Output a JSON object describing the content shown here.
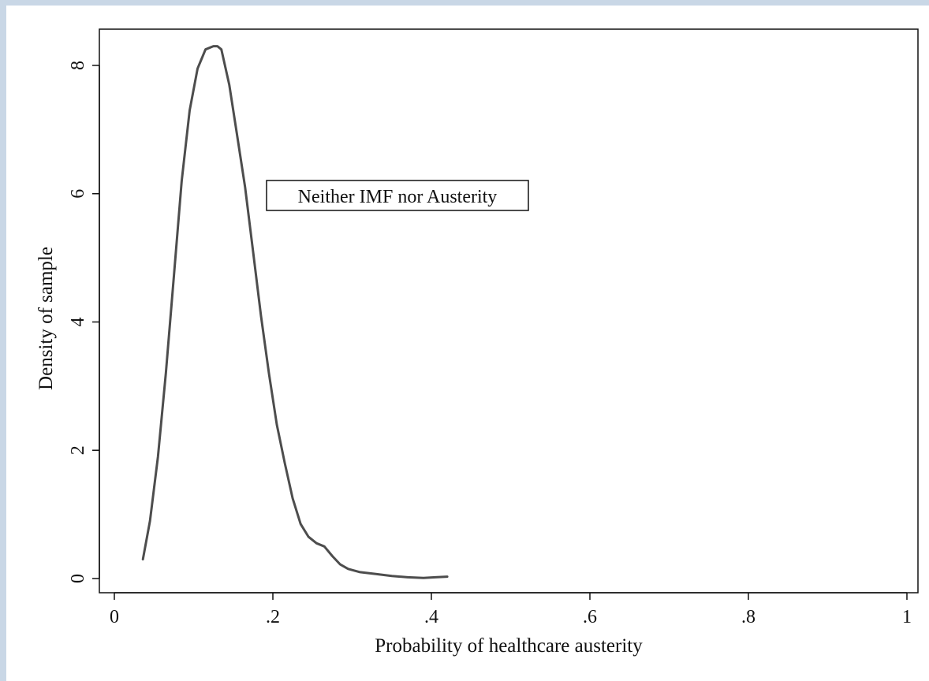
{
  "chart_data": {
    "type": "line",
    "title": "",
    "xlabel": "Probability of healthcare austerity",
    "ylabel": "Density of sample",
    "xlim": [
      0,
      1
    ],
    "ylim": [
      0,
      8.3
    ],
    "x_ticks": [
      0,
      0.2,
      0.4,
      0.6,
      0.8,
      1
    ],
    "x_tick_labels": [
      "0",
      ".2",
      ".4",
      ".6",
      ".8",
      "1"
    ],
    "y_ticks": [
      0,
      2,
      4,
      6,
      8
    ],
    "y_tick_labels": [
      "0",
      "2",
      "4",
      "6",
      "8"
    ],
    "grid": false,
    "legend": "none",
    "annotation": "Neither IMF nor Austerity",
    "line_color": "#4d4d4d",
    "series": [
      {
        "x": [
          0.036,
          0.045,
          0.055,
          0.065,
          0.075,
          0.085,
          0.095,
          0.105,
          0.115,
          0.125,
          0.13,
          0.135,
          0.145,
          0.155,
          0.165,
          0.175,
          0.185,
          0.195,
          0.205,
          0.215,
          0.225,
          0.235,
          0.245,
          0.255,
          0.265,
          0.275,
          0.285,
          0.295,
          0.31,
          0.33,
          0.35,
          0.37,
          0.39,
          0.405,
          0.42
        ],
        "values": [
          0.3,
          0.9,
          1.9,
          3.2,
          4.7,
          6.2,
          7.3,
          7.95,
          8.25,
          8.3,
          8.3,
          8.25,
          7.7,
          6.9,
          6.1,
          5.1,
          4.1,
          3.2,
          2.4,
          1.8,
          1.25,
          0.85,
          0.65,
          0.55,
          0.5,
          0.35,
          0.22,
          0.15,
          0.1,
          0.07,
          0.04,
          0.02,
          0.01,
          0.02,
          0.03
        ]
      }
    ]
  }
}
